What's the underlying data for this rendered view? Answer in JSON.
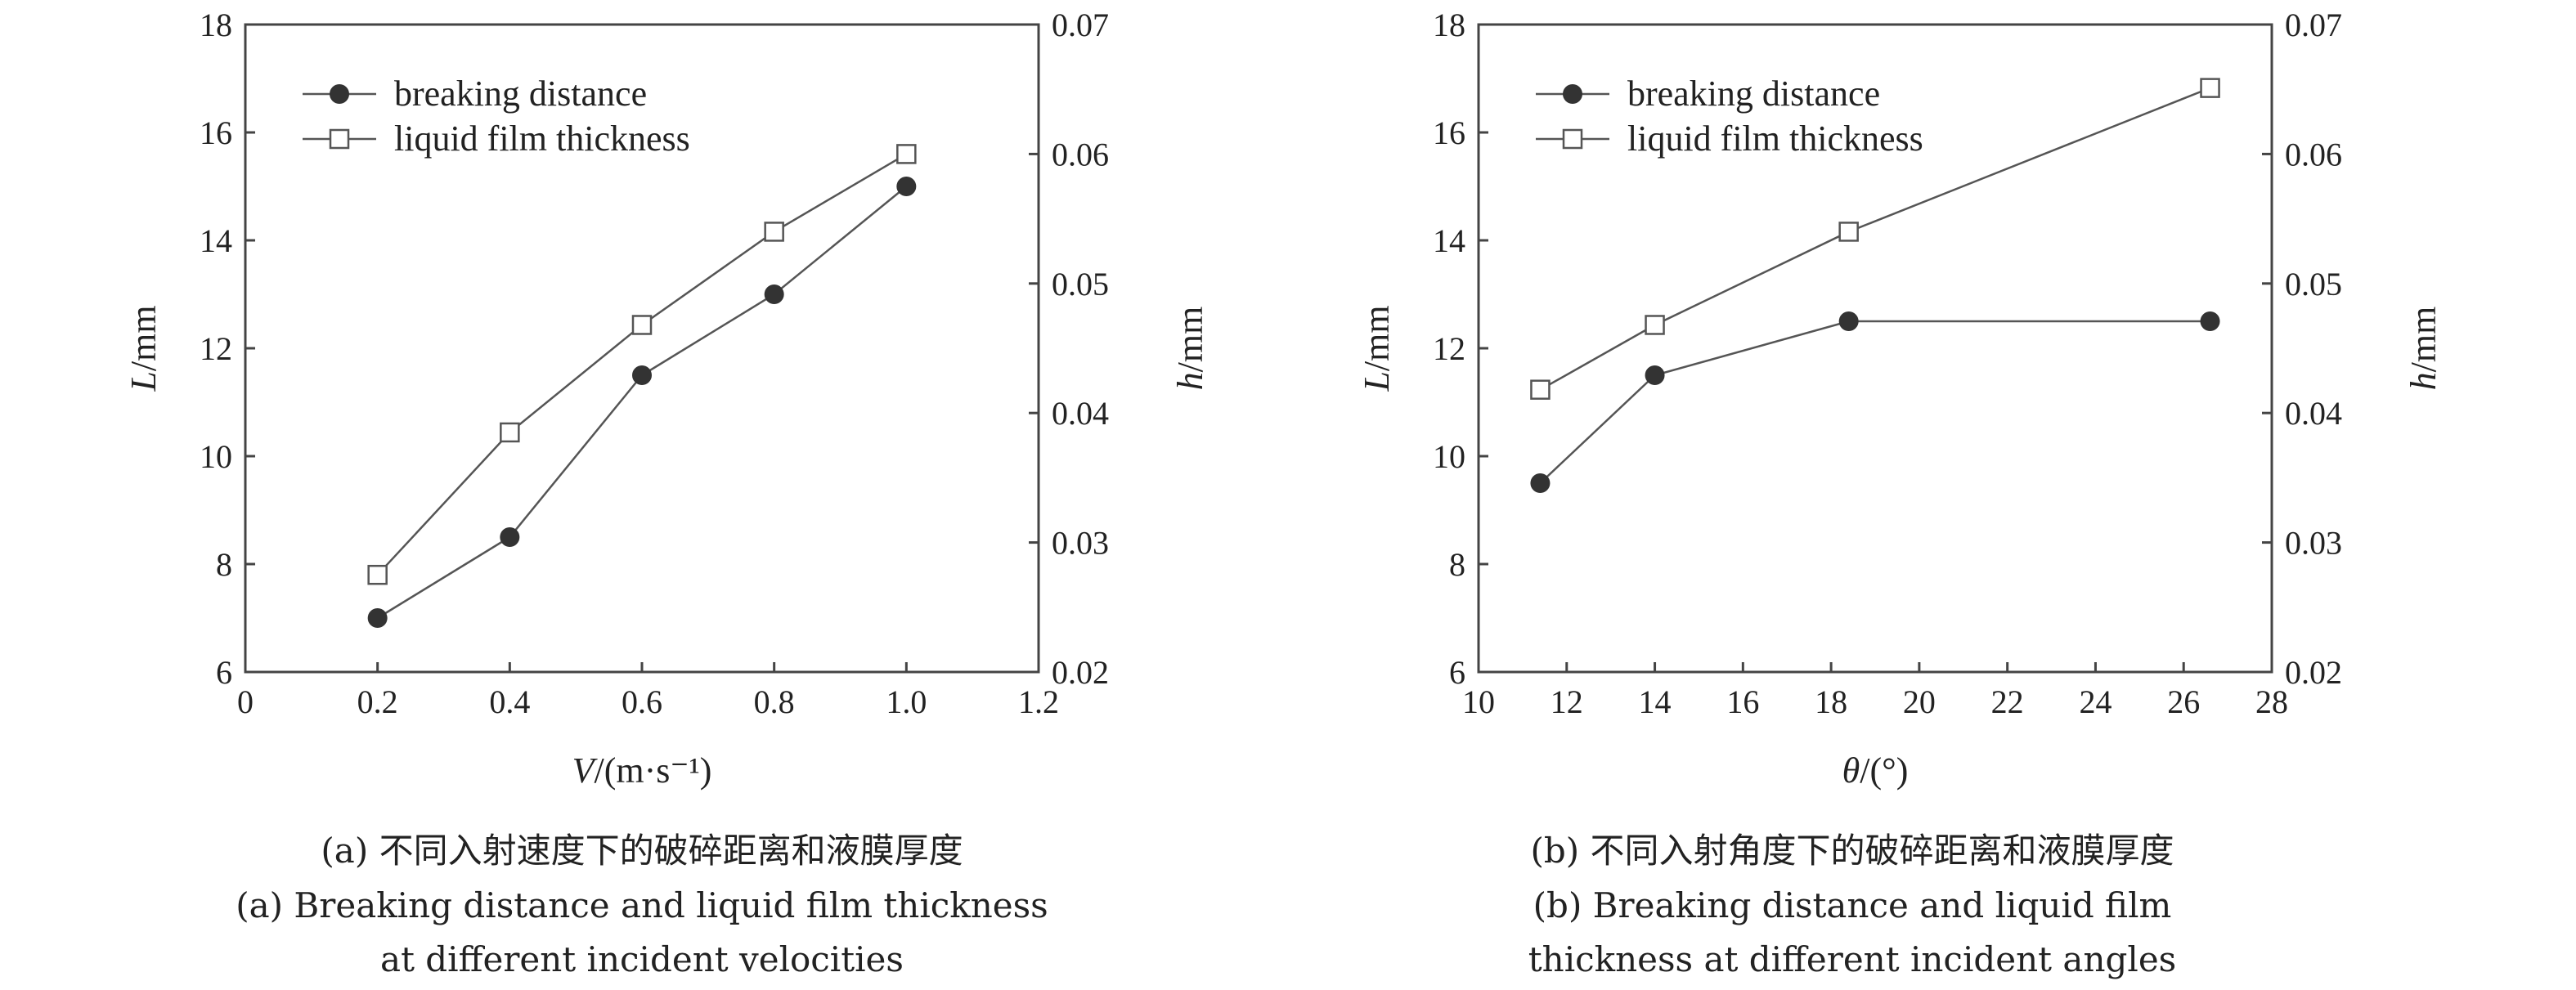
{
  "chart_data": [
    {
      "type": "line",
      "x": [
        0.2,
        0.4,
        0.6,
        0.8,
        1.0
      ],
      "xlim": [
        0,
        1.2
      ],
      "xticks": [
        "0",
        "0.2",
        "0.4",
        "0.6",
        "0.8",
        "1.0",
        "1.2"
      ],
      "xlabel": "V/(m·s⁻¹)",
      "ylim_left": [
        6,
        18
      ],
      "yticks_left": [
        "6",
        "8",
        "10",
        "12",
        "14",
        "16",
        "18"
      ],
      "ylabel_left": "L/mm",
      "ylim_right": [
        0.02,
        0.07
      ],
      "yticks_right": [
        "0.02",
        "0.03",
        "0.04",
        "0.05",
        "0.06",
        "0.07"
      ],
      "ylabel_right": "h/mm",
      "legend_position": "top-left",
      "grid": false,
      "series": [
        {
          "name": "breaking distance",
          "axis": "left",
          "marker": "filled-circle",
          "values": [
            7.0,
            8.5,
            11.5,
            13.0,
            15.0
          ]
        },
        {
          "name": "liquid film thickness",
          "axis": "right",
          "marker": "open-square",
          "values": [
            0.0275,
            0.0385,
            0.0468,
            0.054,
            0.06
          ]
        }
      ],
      "caption_cn": "(a) 不同入射速度下的破碎距离和液膜厚度",
      "caption_en_1": "(a) Breaking distance and liquid film thickness",
      "caption_en_2": "at different incident velocities"
    },
    {
      "type": "line",
      "x": [
        11.4,
        14.0,
        18.4,
        26.6
      ],
      "xlim": [
        10,
        28
      ],
      "xticks": [
        "10",
        "12",
        "14",
        "16",
        "18",
        "20",
        "22",
        "24",
        "26",
        "28"
      ],
      "xlabel": "θ/(°)",
      "ylim_left": [
        6,
        18
      ],
      "yticks_left": [
        "6",
        "8",
        "10",
        "12",
        "14",
        "16",
        "18"
      ],
      "ylabel_left": "L/mm",
      "ylim_right": [
        0.02,
        0.07
      ],
      "yticks_right": [
        "0.02",
        "0.03",
        "0.04",
        "0.05",
        "0.06",
        "0.07"
      ],
      "ylabel_right": "h/mm",
      "legend_position": "top-left",
      "grid": false,
      "series": [
        {
          "name": "breaking distance",
          "axis": "left",
          "marker": "filled-circle",
          "values": [
            9.5,
            11.5,
            12.5,
            12.5
          ]
        },
        {
          "name": "liquid film thickness",
          "axis": "right",
          "marker": "open-square",
          "values": [
            0.0418,
            0.0468,
            0.054,
            0.0651
          ]
        }
      ],
      "caption_cn": "(b) 不同入射角度下的破碎距离和液膜厚度",
      "caption_en_1": "(b) Breaking distance and liquid film",
      "caption_en_2": "thickness at different incident angles"
    }
  ],
  "colors": {
    "line": "#555555",
    "marker_fill": "#333333",
    "axis": "#444444",
    "text": "#222222"
  }
}
